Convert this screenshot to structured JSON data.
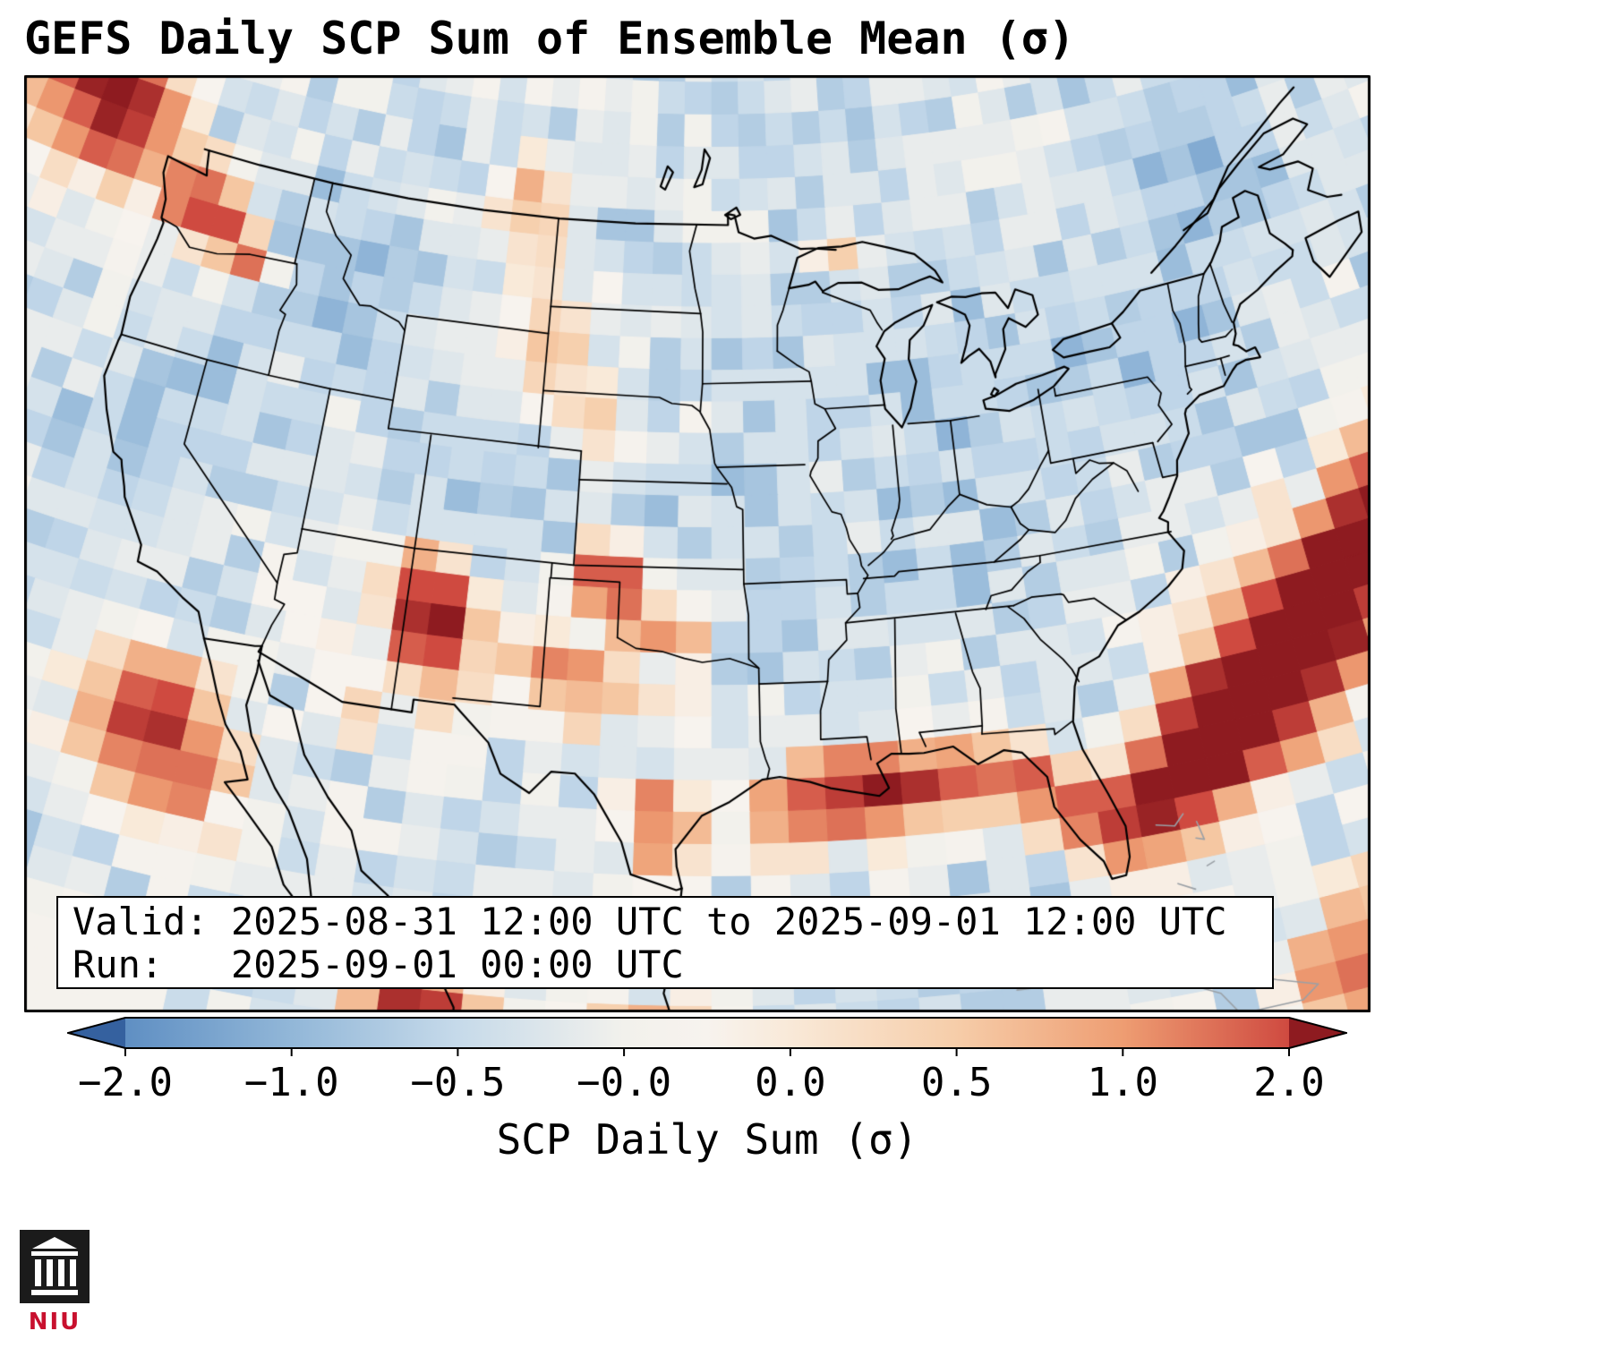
{
  "title": "GEFS Daily SCP Sum of Ensemble Mean (σ)",
  "info_box": {
    "line1": "Valid: 2025-08-31 12:00 UTC to 2025-09-01 12:00 UTC",
    "line2": "Run:   2025-09-01 00:00 UTC"
  },
  "colorbar": {
    "label": "SCP Daily Sum (σ)",
    "ticks": [
      "−2.0",
      "−1.0",
      "−0.5",
      "−0.0",
      "0.0",
      "0.5",
      "1.0",
      "2.0"
    ],
    "extend": "both",
    "palette": {
      "u": [
        -0.12,
        0,
        0.1429,
        0.2857,
        0.4286,
        0.5,
        0.5714,
        0.7143,
        0.8571,
        1,
        1.12
      ],
      "hex": [
        "#35619f",
        "#5f8fc3",
        "#92b7d8",
        "#c6daea",
        "#f2f1ec",
        "#f7f3ee",
        "#f9e9d8",
        "#f6cda9",
        "#ee9d72",
        "#cf4a40",
        "#8e1b20"
      ]
    }
  },
  "logo": {
    "text": "NIU",
    "icon": "building-columns-icon"
  },
  "chart_data": {
    "type": "heatmap",
    "title": "GEFS Daily SCP Sum of Ensemble Mean (σ)",
    "units": "σ",
    "colormap": "RdBu_r",
    "levels": [
      -2,
      -1,
      -0.5,
      -0.0,
      0.0,
      0.5,
      1,
      2
    ],
    "white_band_halfwidth": 0.12,
    "projection": "Lambert Conformal over CONUS",
    "valid": "2025-08-31 12:00 UTC to 2025-09-01 12:00 UTC",
    "run": "2025-09-01 00:00 UTC",
    "grid_step_deg": {
      "lon": 1.5,
      "lat": 1.1
    },
    "background_sigma_range": [
      -0.9,
      -0.1
    ],
    "hotspot_format": "[lon, lat, amplitude_sigma, radius_deg]",
    "hotspots": [
      [
        -130.5,
        51.5,
        2.6,
        2.0
      ],
      [
        -127.5,
        49.3,
        2.8,
        1.5
      ],
      [
        -122.8,
        47.4,
        2.4,
        0.9
      ],
      [
        -120.8,
        46.6,
        1.8,
        0.8
      ],
      [
        -119.2,
        45.9,
        1.4,
        0.7
      ],
      [
        -105.3,
        49.7,
        1.0,
        1.1
      ],
      [
        -103.7,
        44.5,
        0.9,
        1.0
      ],
      [
        -102.2,
        42.7,
        0.85,
        0.9
      ],
      [
        -100.0,
        41.5,
        0.7,
        0.8
      ],
      [
        -89.6,
        47.8,
        0.8,
        0.7
      ],
      [
        -108.2,
        35.8,
        2.2,
        0.9
      ],
      [
        -107.2,
        34.6,
        2.0,
        0.8
      ],
      [
        -108.8,
        34.4,
        1.6,
        0.7
      ],
      [
        -107.8,
        33.3,
        1.3,
        0.8
      ],
      [
        -103.3,
        33.4,
        1.2,
        0.9
      ],
      [
        -100.3,
        37.0,
        1.5,
        0.8
      ],
      [
        -101.5,
        36.2,
        1.3,
        0.7
      ],
      [
        -100.6,
        36.5,
        1.9,
        0.5
      ],
      [
        -97.5,
        34.9,
        2.1,
        0.55
      ],
      [
        -99.3,
        35.3,
        1.5,
        0.6
      ],
      [
        -97.3,
        33.0,
        1.7,
        0.5
      ],
      [
        -101.0,
        32.7,
        1.2,
        1.1
      ],
      [
        -106.8,
        31.8,
        0.8,
        0.7
      ],
      [
        -110.5,
        31.5,
        0.7,
        0.8
      ],
      [
        -113.5,
        33.5,
        0.6,
        0.7
      ],
      [
        -98.1,
        28.6,
        2.2,
        0.7
      ],
      [
        -97.6,
        27.2,
        1.5,
        0.6
      ],
      [
        -118.5,
        29.5,
        2.6,
        1.4
      ],
      [
        -116.5,
        27.5,
        1.5,
        1.2
      ],
      [
        -107.5,
        21.8,
        2.2,
        1.0
      ],
      [
        -105.8,
        20.8,
        2.2,
        1.0
      ],
      [
        -98.5,
        20.5,
        1.2,
        1.2
      ],
      [
        -93.5,
        28.6,
        1.1,
        0.9
      ],
      [
        -91.5,
        28.9,
        1.5,
        0.9
      ],
      [
        -89.8,
        29.1,
        2.2,
        0.8
      ],
      [
        -88.0,
        29.3,
        1.9,
        0.8
      ],
      [
        -86.0,
        29.3,
        1.4,
        0.8
      ],
      [
        -84.3,
        28.9,
        1.5,
        0.8
      ],
      [
        -82.6,
        28.6,
        1.7,
        0.8
      ],
      [
        -81.3,
        27.3,
        1.2,
        0.7
      ],
      [
        -90.0,
        28.8,
        0.5,
        2.4
      ],
      [
        -79.5,
        27.0,
        2.0,
        1.0
      ],
      [
        -77.8,
        28.0,
        2.5,
        1.1
      ],
      [
        -76.0,
        29.2,
        2.8,
        1.2
      ],
      [
        -74.2,
        30.4,
        2.9,
        1.2
      ],
      [
        -72.3,
        31.6,
        2.9,
        1.2
      ],
      [
        -70.4,
        32.8,
        2.8,
        1.2
      ],
      [
        -68.5,
        34.0,
        2.7,
        1.2
      ],
      [
        -66.6,
        35.2,
        2.5,
        1.3
      ],
      [
        -64.8,
        36.3,
        2.4,
        1.4
      ],
      [
        -75.0,
        29.8,
        0.8,
        2.4
      ],
      [
        -70.5,
        32.5,
        0.8,
        2.4
      ],
      [
        -72.7,
        20.5,
        1.8,
        1.4
      ],
      [
        -69.0,
        22.0,
        1.6,
        1.6
      ],
      [
        -101.0,
        46.0,
        0.5,
        0.8
      ],
      [
        -104.5,
        47.5,
        0.6,
        0.9
      ],
      [
        -99.5,
        44.3,
        0.5,
        0.7
      ],
      [
        -96.8,
        41.8,
        0.5,
        0.6
      ]
    ],
    "cool_patches": [
      [
        -114.5,
        46.5,
        -0.4,
        2.6
      ],
      [
        -120.5,
        39.5,
        -0.3,
        2.2
      ],
      [
        -97.5,
        39.0,
        -0.25,
        2.3
      ],
      [
        -89.5,
        43.5,
        -0.3,
        2.6
      ],
      [
        -83.5,
        42.5,
        -0.25,
        2.2
      ],
      [
        -75.0,
        43.0,
        -0.3,
        2.4
      ],
      [
        -70.0,
        46.5,
        -0.3,
        2.2
      ],
      [
        -107.0,
        41.0,
        -0.25,
        2.0
      ],
      [
        -102.0,
        48.5,
        -0.25,
        2.0
      ],
      [
        -71.0,
        50.0,
        -0.3,
        2.4
      ],
      [
        -91.0,
        36.5,
        -0.2,
        2.2
      ],
      [
        -81.0,
        36.5,
        -0.2,
        2.2
      ],
      [
        -88.0,
        25.0,
        -0.15,
        2.5
      ]
    ],
    "white_calm_region": {
      "lon_max": -114.5,
      "lat_max": 23.5
    }
  }
}
